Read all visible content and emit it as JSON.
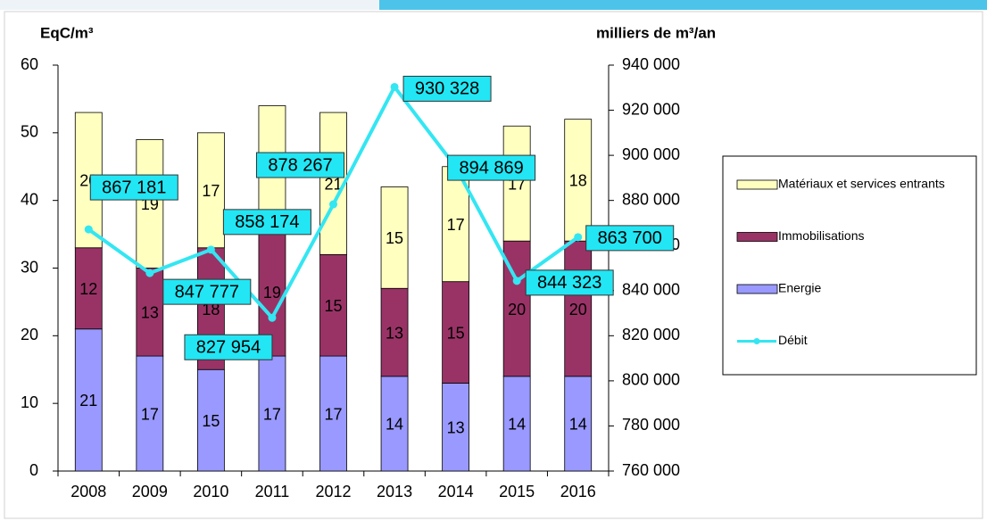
{
  "chart_data": {
    "type": "bar",
    "stacked": true,
    "y_label": "EqC/m³",
    "y2_label": "milliers de m³/an",
    "categories": [
      "2008",
      "2009",
      "2010",
      "2011",
      "2012",
      "2013",
      "2014",
      "2015",
      "2016"
    ],
    "series": [
      {
        "name": "Energie",
        "color": "#9999ff",
        "values": [
          21,
          17,
          15,
          17,
          17,
          14,
          13,
          14,
          14
        ]
      },
      {
        "name": "Immobilisations",
        "color": "#993366",
        "values": [
          12,
          13,
          18,
          19,
          15,
          13,
          15,
          20,
          20
        ]
      },
      {
        "name": "Matériaux et services entrants",
        "color": "#ffffc0",
        "values": [
          20,
          19,
          17,
          18,
          21,
          15,
          17,
          17,
          18
        ]
      },
      {
        "name": "Débit",
        "type": "line",
        "axis": "y2",
        "color": "#33e6f2",
        "values": [
          867181,
          847777,
          858174,
          827954,
          878267,
          930328,
          894869,
          844323,
          863700
        ],
        "value_labels": [
          "867 181",
          "847 777",
          "858 174",
          "827 954",
          "878 267",
          "930 328",
          "894 869",
          "844 323",
          "863 700"
        ]
      }
    ],
    "ylim": [
      0,
      60
    ],
    "yticks": [
      0,
      10,
      20,
      30,
      40,
      50,
      60
    ],
    "y2lim": [
      760000,
      940000
    ],
    "y2ticks": [
      {
        "value": 760000,
        "label": "760 000"
      },
      {
        "value": 780000,
        "label": "780 000"
      },
      {
        "value": 800000,
        "label": "800 000"
      },
      {
        "value": 820000,
        "label": "820 000"
      },
      {
        "value": 840000,
        "label": "840 000"
      },
      {
        "value": 860000,
        "label": "860 000"
      },
      {
        "value": 880000,
        "label": "880 000"
      },
      {
        "value": 900000,
        "label": "900 000"
      },
      {
        "value": 920000,
        "label": "920 000"
      },
      {
        "value": 940000,
        "label": "940 000"
      }
    ],
    "legend": "right"
  }
}
